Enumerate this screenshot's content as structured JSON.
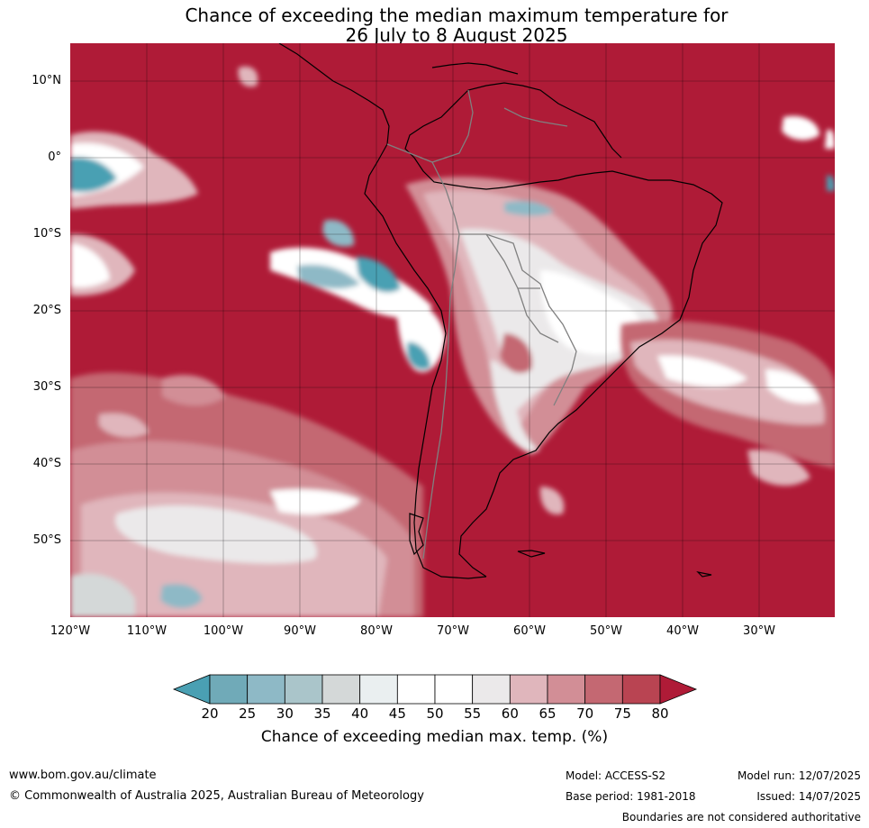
{
  "title": {
    "line1": "Chance of exceeding the median maximum temperature for",
    "line2": "26 July to 8 August 2025"
  },
  "map": {
    "lat_labels": [
      "10°N",
      "0°",
      "10°S",
      "20°S",
      "30°S",
      "40°S",
      "50°S"
    ],
    "lon_labels": [
      "120°W",
      "110°W",
      "100°W",
      "90°W",
      "80°W",
      "70°W",
      "60°W",
      "50°W",
      "40°W",
      "30°W"
    ],
    "background_color": "#af1b37",
    "land_outline_color": "#000000",
    "border_color": "#808080"
  },
  "colorbar": {
    "ticks": [
      "20",
      "25",
      "30",
      "35",
      "40",
      "45",
      "50",
      "55",
      "60",
      "65",
      "70",
      "75",
      "80"
    ],
    "colors": [
      "#4aa0b3",
      "#70aab8",
      "#8eb9c6",
      "#aac5ca",
      "#d4d8d8",
      "#eaeff0",
      "#ffffff",
      "#ffffff",
      "#ebe9ea",
      "#e0b6bc",
      "#d28e96",
      "#c46872",
      "#b94452",
      "#af1b37"
    ],
    "label": "Chance of exceeding median max. temp. (%)"
  },
  "footer": {
    "website": "www.bom.gov.au/climate",
    "copyright": "© Commonwealth of Australia 2025, Australian Bureau of Meteorology",
    "model": "Model: ACCESS-S2",
    "base_period": "Base period: 1981-2018",
    "model_run": "Model run: 12/07/2025",
    "issued": "Issued: 14/07/2025",
    "disclaimer": "Boundaries are not considered authoritative"
  }
}
